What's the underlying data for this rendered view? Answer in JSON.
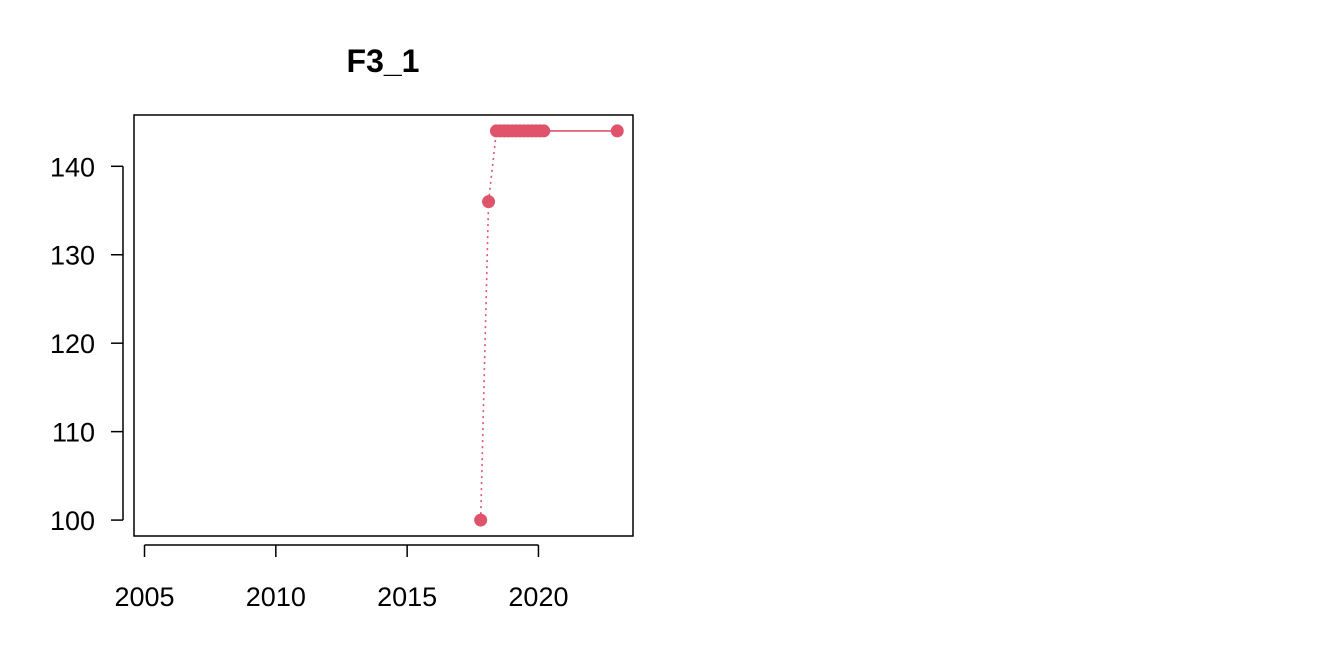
{
  "chart_data": {
    "type": "line",
    "title": "F3_1",
    "xlabel": "",
    "ylabel": "",
    "xlim": [
      2004.6,
      2023.6
    ],
    "ylim": [
      98.2,
      145.8
    ],
    "x_ticks": [
      2005,
      2010,
      2015,
      2020
    ],
    "y_ticks": [
      100,
      110,
      120,
      130,
      140
    ],
    "x_tick_labels": [
      "2005",
      "2010",
      "2015",
      "2020"
    ],
    "y_tick_labels": [
      "100",
      "110",
      "120",
      "130",
      "140"
    ],
    "grid": false,
    "legend": "none",
    "series": [
      {
        "color": "#DF536B",
        "points": [
          {
            "x": 2017.8,
            "y": 100,
            "line_to_next": "dotted"
          },
          {
            "x": 2018.1,
            "y": 136,
            "line_to_next": "dotted"
          },
          {
            "x": 2018.4,
            "y": 144,
            "line_to_next": "solid"
          },
          {
            "x": 2018.55,
            "y": 144,
            "line_to_next": "solid"
          },
          {
            "x": 2018.7,
            "y": 144,
            "line_to_next": "solid"
          },
          {
            "x": 2018.85,
            "y": 144,
            "line_to_next": "solid"
          },
          {
            "x": 2019.0,
            "y": 144,
            "line_to_next": "solid"
          },
          {
            "x": 2019.15,
            "y": 144,
            "line_to_next": "solid"
          },
          {
            "x": 2019.3,
            "y": 144,
            "line_to_next": "solid"
          },
          {
            "x": 2019.45,
            "y": 144,
            "line_to_next": "solid"
          },
          {
            "x": 2019.6,
            "y": 144,
            "line_to_next": "solid"
          },
          {
            "x": 2019.75,
            "y": 144,
            "line_to_next": "solid"
          },
          {
            "x": 2019.9,
            "y": 144,
            "line_to_next": "solid"
          },
          {
            "x": 2020.05,
            "y": 144,
            "line_to_next": "solid"
          },
          {
            "x": 2020.2,
            "y": 144,
            "line_to_next": "solid"
          },
          {
            "x": 2023.0,
            "y": 144,
            "line_to_next": null
          }
        ]
      }
    ]
  }
}
